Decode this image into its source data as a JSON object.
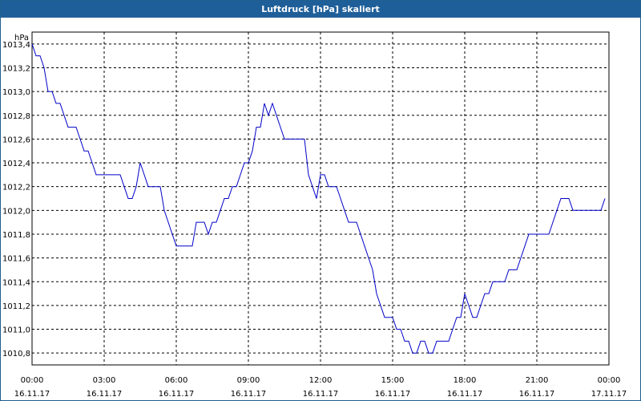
{
  "window": {
    "title": "Luftdruck [hPa] skaliert"
  },
  "colors": {
    "titlebar": "#1f5f99",
    "line": "#0000c8",
    "grid": "#000000"
  },
  "chart_data": {
    "type": "line",
    "title": "Luftdruck [hPa] skaliert",
    "ylabel": "hPa",
    "xlabel": "",
    "grid": true,
    "ylim": [
      1010.7,
      1013.5
    ],
    "xlim": [
      "16.11.17 00:00",
      "17.11.17 00:00"
    ],
    "y_ticks": [
      "1010,8",
      "1011,0",
      "1011,2",
      "1011,4",
      "1011,6",
      "1011,8",
      "1012,0",
      "1012,2",
      "1012,4",
      "1012,6",
      "1012,8",
      "1013,0",
      "1013,2",
      "1013,4"
    ],
    "x_ticks": [
      {
        "time": "00:00",
        "date": "16.11.17"
      },
      {
        "time": "03:00",
        "date": "16.11.17"
      },
      {
        "time": "06:00",
        "date": "16.11.17"
      },
      {
        "time": "09:00",
        "date": "16.11.17"
      },
      {
        "time": "12:00",
        "date": "16.11.17"
      },
      {
        "time": "15:00",
        "date": "16.11.17"
      },
      {
        "time": "18:00",
        "date": "16.11.17"
      },
      {
        "time": "21:00",
        "date": "16.11.17"
      },
      {
        "time": "00:00",
        "date": "17.11.17"
      }
    ],
    "series": [
      {
        "x": [
          "16.11.17 00:00",
          "16.11.17 00:10",
          "16.11.17 00:20",
          "16.11.17 00:30",
          "16.11.17 00:40",
          "16.11.17 00:50",
          "16.11.17 01:00",
          "16.11.17 01:10",
          "16.11.17 01:20",
          "16.11.17 01:30",
          "16.11.17 01:40",
          "16.11.17 01:50",
          "16.11.17 02:00",
          "16.11.17 02:10",
          "16.11.17 02:20",
          "16.11.17 02:30",
          "16.11.17 02:40",
          "16.11.17 02:50",
          "16.11.17 03:00",
          "16.11.17 03:10",
          "16.11.17 03:20",
          "16.11.17 03:30",
          "16.11.17 03:40",
          "16.11.17 03:50",
          "16.11.17 04:00",
          "16.11.17 04:10",
          "16.11.17 04:20",
          "16.11.17 04:30",
          "16.11.17 04:40",
          "16.11.17 04:50",
          "16.11.17 05:00",
          "16.11.17 05:10",
          "16.11.17 05:20",
          "16.11.17 05:30",
          "16.11.17 05:40",
          "16.11.17 05:50",
          "16.11.17 06:00",
          "16.11.17 06:10",
          "16.11.17 06:20",
          "16.11.17 06:30",
          "16.11.17 06:40",
          "16.11.17 06:50",
          "16.11.17 07:00",
          "16.11.17 07:10",
          "16.11.17 07:20",
          "16.11.17 07:30",
          "16.11.17 07:40",
          "16.11.17 07:50",
          "16.11.17 08:00",
          "16.11.17 08:10",
          "16.11.17 08:20",
          "16.11.17 08:30",
          "16.11.17 08:40",
          "16.11.17 08:50",
          "16.11.17 09:00",
          "16.11.17 09:10",
          "16.11.17 09:20",
          "16.11.17 09:30",
          "16.11.17 09:40",
          "16.11.17 09:50",
          "16.11.17 10:00",
          "16.11.17 10:10",
          "16.11.17 10:20",
          "16.11.17 10:30",
          "16.11.17 10:40",
          "16.11.17 10:50",
          "16.11.17 11:00",
          "16.11.17 11:10",
          "16.11.17 11:20",
          "16.11.17 11:30",
          "16.11.17 11:40",
          "16.11.17 11:50",
          "16.11.17 12:00",
          "16.11.17 12:10",
          "16.11.17 12:20",
          "16.11.17 12:30",
          "16.11.17 12:40",
          "16.11.17 12:50",
          "16.11.17 13:00",
          "16.11.17 13:10",
          "16.11.17 13:20",
          "16.11.17 13:30",
          "16.11.17 13:40",
          "16.11.17 13:50",
          "16.11.17 14:00",
          "16.11.17 14:10",
          "16.11.17 14:20",
          "16.11.17 14:30",
          "16.11.17 14:40",
          "16.11.17 14:50",
          "16.11.17 15:00",
          "16.11.17 15:10",
          "16.11.17 15:20",
          "16.11.17 15:30",
          "16.11.17 15:40",
          "16.11.17 15:50",
          "16.11.17 16:00",
          "16.11.17 16:10",
          "16.11.17 16:20",
          "16.11.17 16:30",
          "16.11.17 16:40",
          "16.11.17 16:50",
          "16.11.17 17:00",
          "16.11.17 17:10",
          "16.11.17 17:20",
          "16.11.17 17:30",
          "16.11.17 17:40",
          "16.11.17 17:50",
          "16.11.17 18:00",
          "16.11.17 18:10",
          "16.11.17 18:20",
          "16.11.17 18:30",
          "16.11.17 18:40",
          "16.11.17 18:50",
          "16.11.17 19:00",
          "16.11.17 19:10",
          "16.11.17 19:20",
          "16.11.17 19:30",
          "16.11.17 19:40",
          "16.11.17 19:50",
          "16.11.17 20:00",
          "16.11.17 20:10",
          "16.11.17 20:20",
          "16.11.17 20:30",
          "16.11.17 20:40",
          "16.11.17 20:50",
          "16.11.17 21:00",
          "16.11.17 21:10",
          "16.11.17 21:20",
          "16.11.17 21:30",
          "16.11.17 21:40",
          "16.11.17 21:50",
          "16.11.17 22:00",
          "16.11.17 22:10",
          "16.11.17 22:20",
          "16.11.17 22:30",
          "16.11.17 22:40",
          "16.11.17 22:50",
          "16.11.17 23:00",
          "16.11.17 23:10",
          "16.11.17 23:20",
          "16.11.17 23:30",
          "16.11.17 23:40",
          "16.11.17 23:50"
        ],
        "values": [
          1013.4,
          1013.3,
          1013.3,
          1013.2,
          1013.0,
          1013.0,
          1012.9,
          1012.9,
          1012.8,
          1012.7,
          1012.7,
          1012.7,
          1012.6,
          1012.5,
          1012.5,
          1012.4,
          1012.3,
          1012.3,
          1012.3,
          1012.3,
          1012.3,
          1012.3,
          1012.3,
          1012.2,
          1012.1,
          1012.1,
          1012.2,
          1012.4,
          1012.3,
          1012.2,
          1012.2,
          1012.2,
          1012.2,
          1012.0,
          1011.9,
          1011.8,
          1011.7,
          1011.7,
          1011.7,
          1011.7,
          1011.7,
          1011.9,
          1011.9,
          1011.9,
          1011.8,
          1011.9,
          1011.9,
          1012.0,
          1012.1,
          1012.1,
          1012.2,
          1012.2,
          1012.3,
          1012.4,
          1012.4,
          1012.5,
          1012.7,
          1012.7,
          1012.9,
          1012.8,
          1012.9,
          1012.8,
          1012.7,
          1012.6,
          1012.6,
          1012.6,
          1012.6,
          1012.6,
          1012.6,
          1012.3,
          1012.2,
          1012.1,
          1012.3,
          1012.3,
          1012.2,
          1012.2,
          1012.2,
          1012.1,
          1012.0,
          1011.9,
          1011.9,
          1011.9,
          1011.8,
          1011.7,
          1011.6,
          1011.5,
          1011.3,
          1011.2,
          1011.1,
          1011.1,
          1011.1,
          1011.0,
          1011.0,
          1010.9,
          1010.9,
          1010.8,
          1010.8,
          1010.9,
          1010.9,
          1010.8,
          1010.8,
          1010.9,
          1010.9,
          1010.9,
          1010.9,
          1011.0,
          1011.1,
          1011.1,
          1011.3,
          1011.2,
          1011.1,
          1011.1,
          1011.2,
          1011.3,
          1011.3,
          1011.4,
          1011.4,
          1011.4,
          1011.4,
          1011.5,
          1011.5,
          1011.5,
          1011.6,
          1011.7,
          1011.8,
          1011.8,
          1011.8,
          1011.8,
          1011.8,
          1011.8,
          1011.9,
          1012.0,
          1012.1,
          1012.1,
          1012.1,
          1012.0,
          1012.0,
          1012.0,
          1012.0,
          1012.0,
          1012.0,
          1012.0,
          1012.0,
          1012.1
        ]
      }
    ]
  }
}
